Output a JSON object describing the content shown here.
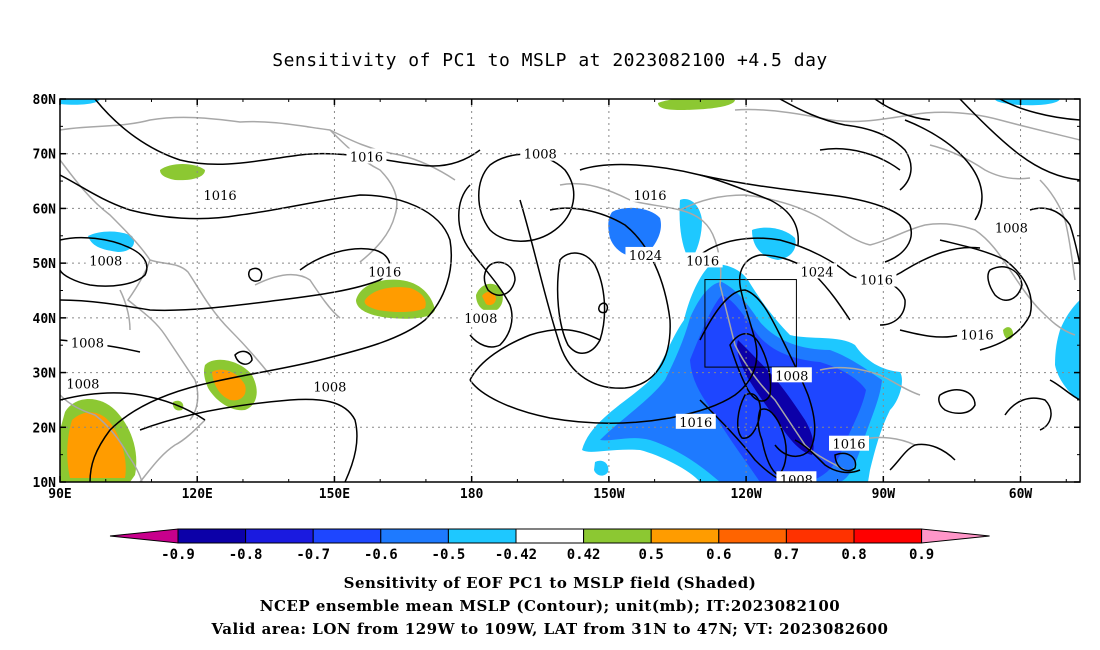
{
  "title": "Sensitivity of PC1 to MSLP at 2023082100 +4.5 day",
  "captions": {
    "line1": "Sensitivity of EOF PC1 to MSLP field (Shaded)",
    "line2": "NCEP ensemble mean MSLP (Contour); unit(mb); IT:2023082100",
    "line3": "Valid area: LON from 129W to 109W, LAT from 31N to 47N; VT: 2023082600"
  },
  "axes": {
    "lon_labels": [
      "90E",
      "120E",
      "150E",
      "180",
      "150W",
      "120W",
      "90W",
      "60W"
    ],
    "lon_values": [
      90,
      120,
      150,
      180,
      210,
      240,
      270,
      300
    ],
    "lat_labels": [
      "10N",
      "20N",
      "30N",
      "40N",
      "50N",
      "60N",
      "70N",
      "80N"
    ],
    "lat_values": [
      10,
      20,
      30,
      40,
      50,
      60,
      70,
      80
    ],
    "lon_range": [
      90,
      313
    ],
    "lat_range": [
      10,
      80
    ]
  },
  "colorbar": {
    "labels": [
      "-0.9",
      "-0.8",
      "-0.7",
      "-0.6",
      "-0.5",
      "-0.42",
      "0.42",
      "0.5",
      "0.6",
      "0.7",
      "0.8",
      "0.9"
    ],
    "colors": [
      "#0c00a8",
      "#1a1ae0",
      "#1e46ff",
      "#1e7aff",
      "#1ec8ff",
      "#ffffff",
      "#8cc832",
      "#ff9c00",
      "#ff6400",
      "#ff3200",
      "#ff0000"
    ],
    "low_extend_color": "#c8008c",
    "high_extend_color": "#ff96c8"
  },
  "contour_labels": [
    {
      "text": "1016",
      "lon": 157,
      "lat": 69.5
    },
    {
      "text": "1008",
      "lon": 195,
      "lat": 70
    },
    {
      "text": "1016",
      "lon": 125,
      "lat": 62.5
    },
    {
      "text": "1016",
      "lon": 219,
      "lat": 62.5
    },
    {
      "text": "1008",
      "lon": 298,
      "lat": 56.5
    },
    {
      "text": "1008",
      "lon": 100,
      "lat": 50.5
    },
    {
      "text": "1024",
      "lon": 218,
      "lat": 51.5
    },
    {
      "text": "1016",
      "lon": 230.5,
      "lat": 50.5
    },
    {
      "text": "1024",
      "lon": 255.5,
      "lat": 48.5
    },
    {
      "text": "1016",
      "lon": 161,
      "lat": 48.5
    },
    {
      "text": "1016",
      "lon": 268.5,
      "lat": 47
    },
    {
      "text": "1008",
      "lon": 182,
      "lat": 40
    },
    {
      "text": "1016",
      "lon": 290.5,
      "lat": 37
    },
    {
      "text": "1008",
      "lon": 96,
      "lat": 35.5
    },
    {
      "text": "1008",
      "lon": 95,
      "lat": 28
    },
    {
      "text": "1008",
      "lon": 149,
      "lat": 27.5
    },
    {
      "text": "1008",
      "lon": 250,
      "lat": 29.5
    },
    {
      "text": "1016",
      "lon": 229,
      "lat": 21
    },
    {
      "text": "1016",
      "lon": 262.5,
      "lat": 17
    },
    {
      "text": "1008",
      "lon": 251,
      "lat": 10.5
    }
  ],
  "valid_box": {
    "lon_min": 231,
    "lon_max": 251,
    "lat_min": 31,
    "lat_max": 47
  }
}
